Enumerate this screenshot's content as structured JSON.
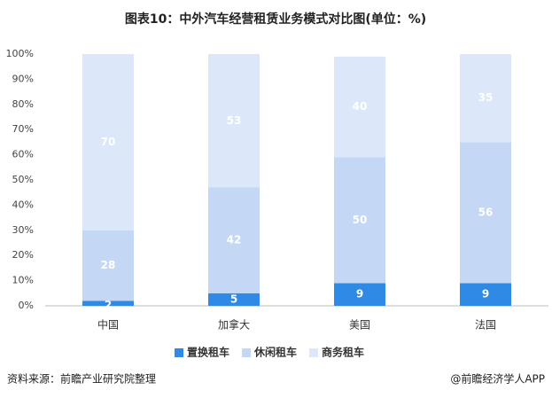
{
  "chart_data": {
    "type": "stacked_bar",
    "title": "图表10：中外汽车经营租赁业务模式对比图(单位：%)",
    "categories": [
      "中国",
      "加拿大",
      "美国",
      "法国"
    ],
    "series": [
      {
        "name": "置换租车",
        "color": "#2f8ae5",
        "values": [
          2,
          5,
          9,
          9
        ]
      },
      {
        "name": "休闲租车",
        "color": "#c4d8f5",
        "values": [
          28,
          42,
          50,
          56
        ]
      },
      {
        "name": "商务租车",
        "color": "#dce8f9",
        "values": [
          70,
          53,
          40,
          35
        ]
      }
    ],
    "ylim": [
      0,
      100
    ],
    "yticks": [
      {
        "value": 0,
        "label": "0%"
      },
      {
        "value": 10,
        "label": "10%"
      },
      {
        "value": 20,
        "label": "20%"
      },
      {
        "value": 30,
        "label": "30%"
      },
      {
        "value": 40,
        "label": "40%"
      },
      {
        "value": 50,
        "label": "50%"
      },
      {
        "value": 60,
        "label": "60%"
      },
      {
        "value": 70,
        "label": "70%"
      },
      {
        "value": 80,
        "label": "80%"
      },
      {
        "value": 90,
        "label": "90%"
      },
      {
        "value": 100,
        "label": "100%"
      }
    ],
    "legend": "bottom",
    "source": "资料来源：前瞻产业研究院整理",
    "credit": "@前瞻经济学人APP"
  }
}
